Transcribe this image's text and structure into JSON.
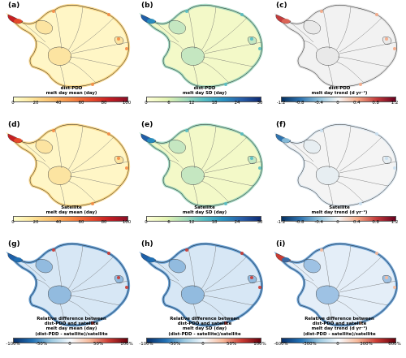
{
  "colorbars": {
    "mean": [
      "#ffffcc",
      "#fde59b",
      "#fbbe6a",
      "#f58c45",
      "#e9512d",
      "#c61f23",
      "#8a0f26"
    ],
    "sd": [
      "#ffffd9",
      "#e5f5b3",
      "#a6dbb8",
      "#56bdc2",
      "#2a93c1",
      "#2a5ea8",
      "#0d2a73"
    ],
    "trend": [
      "#053061",
      "#2f74b0",
      "#93c5de",
      "#f5f5f5",
      "#f4a986",
      "#c43c3c",
      "#67001f"
    ],
    "reldiff": [
      "#08306b",
      "#2171b5",
      "#9ecae1",
      "#f7fbff",
      "#f7b99a",
      "#cb3b33",
      "#67000d"
    ]
  },
  "panels": [
    {
      "id": "a",
      "letter": "(a)",
      "caption": [
        "dist-PDD",
        "melt day mean (day)"
      ],
      "cbar": "mean",
      "ticks": [
        "0",
        "20",
        "40",
        "60",
        "80",
        "100"
      ],
      "fill": "#fff6c6",
      "rim": "#f8cf74",
      "hot": [
        "#c61f23",
        "#e9512d",
        "#f58c45"
      ],
      "stroke": "#9a7a33"
    },
    {
      "id": "b",
      "letter": "(b)",
      "caption": [
        "dist-PDD",
        "melt day SD (day)"
      ],
      "cbar": "sd",
      "ticks": [
        "0",
        "6",
        "12",
        "18",
        "24",
        "30"
      ],
      "fill": "#f3f9c8",
      "rim": "#8fd0b7",
      "hot": [
        "#1f5ea8",
        "#2a93c1",
        "#56bdc2"
      ],
      "stroke": "#5c8a70"
    },
    {
      "id": "c",
      "letter": "(c)",
      "caption": [
        "dist-PDD",
        "melt day trend (d yr⁻¹)"
      ],
      "cbar": "trend",
      "ticks": [
        "-1.2",
        "-0.8",
        "-0.4",
        "0",
        "0.4",
        "0.8",
        "1.2"
      ],
      "fill": "#f2f2f2",
      "rim": "#dddddd",
      "hot": [
        "#c43c3c",
        "#e06b5a",
        "#f4a986"
      ],
      "stroke": "#888888"
    },
    {
      "id": "d",
      "letter": "(d)",
      "caption": [
        "Satellite",
        "melt day mean (day)"
      ],
      "cbar": "mean",
      "ticks": [
        "0",
        "20",
        "40",
        "60",
        "80",
        "100"
      ],
      "fill": "#fff6c6",
      "rim": "#f8cf74",
      "hot": [
        "#c61f23",
        "#e9512d",
        "#f58c45"
      ],
      "stroke": "#9a7a33"
    },
    {
      "id": "e",
      "letter": "(e)",
      "caption": [
        "Satellite",
        "melt day SD (day)"
      ],
      "cbar": "sd",
      "ticks": [
        "0",
        "6",
        "12",
        "18",
        "24",
        "30"
      ],
      "fill": "#f3f9c8",
      "rim": "#8fd0b7",
      "hot": [
        "#1f5ea8",
        "#2a93c1",
        "#56bdc2"
      ],
      "stroke": "#5c8a70"
    },
    {
      "id": "f",
      "letter": "(f)",
      "caption": [
        "Satellite",
        "melt day trend (d yr⁻¹)"
      ],
      "cbar": "trend",
      "ticks": [
        "-1.2",
        "-0.8",
        "-0.4",
        "0",
        "0.4",
        "0.8",
        "1.2"
      ],
      "fill": "#f4f4f4",
      "rim": "#d8e6f0",
      "hot": [
        "#2f74b0",
        "#93c5de",
        "#c9dff0"
      ],
      "stroke": "#888888"
    },
    {
      "id": "g",
      "letter": "(g)",
      "caption": [
        "Relative difference between",
        "dist-PDD and satellite",
        "melt day mean (day)",
        "(dist-PDD - satellite)/satellite"
      ],
      "cbar": "reldiff",
      "ticks": [
        "-100%",
        "-50%",
        "0",
        "50%",
        "100%"
      ],
      "fill": "#d7e7f5",
      "rim": "#3f86c6",
      "hot": [
        "#1d5fa8",
        "#2171b5",
        "#cb3b33"
      ],
      "stroke": "#2a5da0"
    },
    {
      "id": "h",
      "letter": "(h)",
      "caption": [
        "Relative difference between",
        "dist-PDD and satellite",
        "melt day SD (day)",
        "(dist-PDD - satellite)/satellite"
      ],
      "cbar": "reldiff",
      "ticks": [
        "-100%",
        "-50%",
        "0",
        "50%",
        "100%"
      ],
      "fill": "#d7e7f5",
      "rim": "#3f86c6",
      "hot": [
        "#1d5fa8",
        "#2171b5",
        "#cb3b33"
      ],
      "stroke": "#2a5da0"
    },
    {
      "id": "i",
      "letter": "(i)",
      "caption": [
        "Relative difference between",
        "dist-PDD and satellite",
        "melt day trend (d yr⁻¹)",
        "(dist-PDD - satellite)/satellite"
      ],
      "cbar": "reldiff",
      "ticks": [
        "-600%",
        "-300%",
        "0",
        "300%",
        "600%"
      ],
      "fill": "#e4eef8",
      "rim": "#4a8ccb",
      "hot": [
        "#cb3b33",
        "#2171b5",
        "#f7b99a"
      ],
      "stroke": "#2a5da0"
    }
  ]
}
